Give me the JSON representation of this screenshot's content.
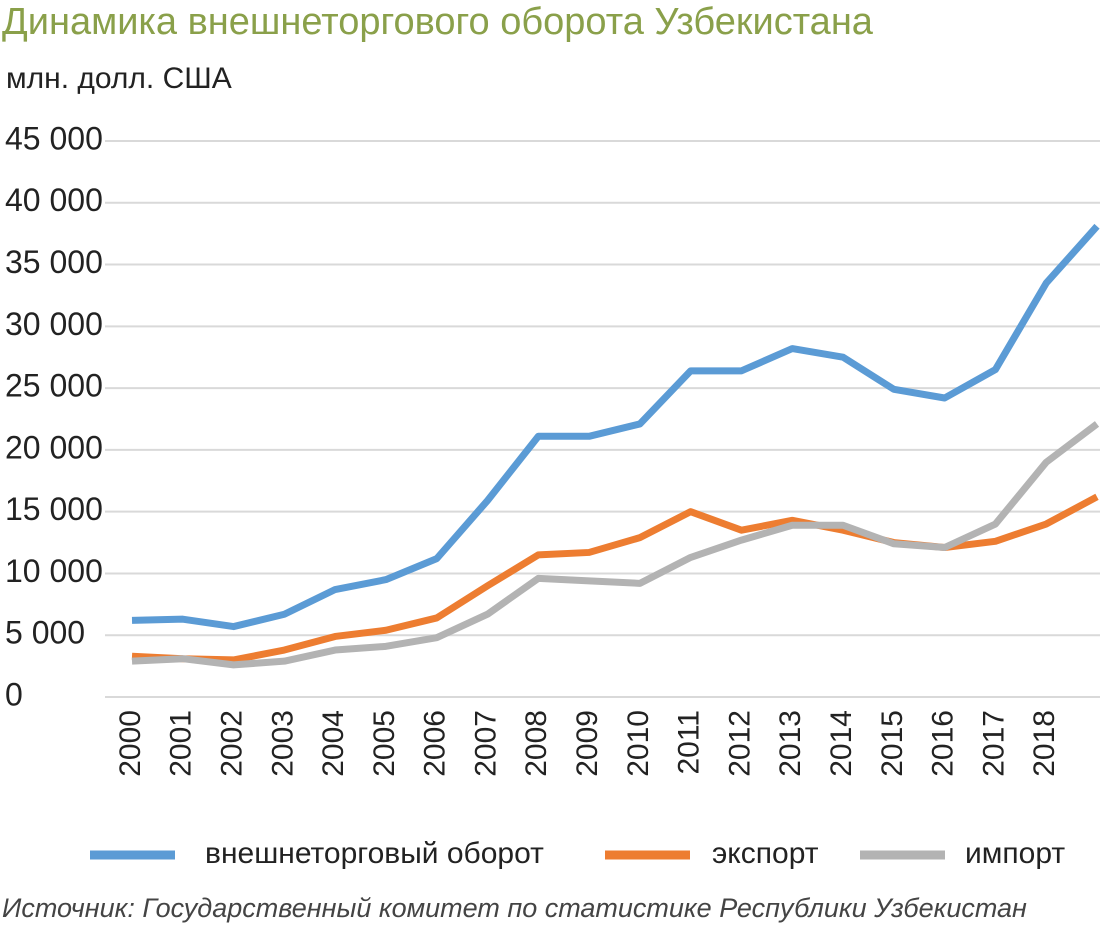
{
  "chart_data": {
    "type": "line",
    "title": "Динамика внешнеторгового оборота Узбекистана",
    "y_label": "млн. долл. США",
    "source": "Источник: Государственный комитет по статистике Республики Узбекистан",
    "categories": [
      "2000",
      "2001",
      "2002",
      "2003",
      "2004",
      "2005",
      "2006",
      "2007",
      "2008",
      "2009",
      "2010",
      "2011",
      "2012",
      "2013",
      "2014",
      "2015",
      "2016",
      "2017",
      "2018",
      null
    ],
    "series": [
      {
        "name": "внешнеторговый оборот",
        "color": "#5b9bd5",
        "values": [
          6200,
          6300,
          5700,
          6700,
          8700,
          9500,
          11200,
          15900,
          21100,
          21100,
          22100,
          26400,
          26400,
          28200,
          27500,
          24900,
          24200,
          26500,
          33500,
          38100
        ]
      },
      {
        "name": "экспорт",
        "color": "#ed7d31",
        "values": [
          3300,
          3100,
          3000,
          3800,
          4900,
          5400,
          6400,
          9000,
          11500,
          11700,
          12900,
          15000,
          13500,
          14300,
          13500,
          12500,
          12100,
          12600,
          14000,
          16200
        ]
      },
      {
        "name": "импорт",
        "color": "#b3b3b3",
        "values": [
          2900,
          3100,
          2600,
          2900,
          3800,
          4100,
          4800,
          6700,
          9600,
          9400,
          9200,
          11300,
          12700,
          13900,
          13900,
          12400,
          12100,
          14000,
          19000,
          22100
        ]
      }
    ],
    "ylim": [
      0,
      45000
    ],
    "yticks": [
      0,
      {
        "value": 5000,
        "label": "5 000"
      },
      {
        "value": 10000,
        "label": "10 000"
      },
      {
        "value": 15000,
        "label": "15 000"
      },
      {
        "value": 20000,
        "label": "20 000"
      },
      {
        "value": 25000,
        "label": "25 000"
      },
      {
        "value": 30000,
        "label": "30 000"
      },
      {
        "value": 35000,
        "label": "35 000"
      },
      {
        "value": 40000,
        "label": "40 000"
      },
      {
        "value": 45000,
        "label": "45 000"
      }
    ],
    "grid": true
  }
}
